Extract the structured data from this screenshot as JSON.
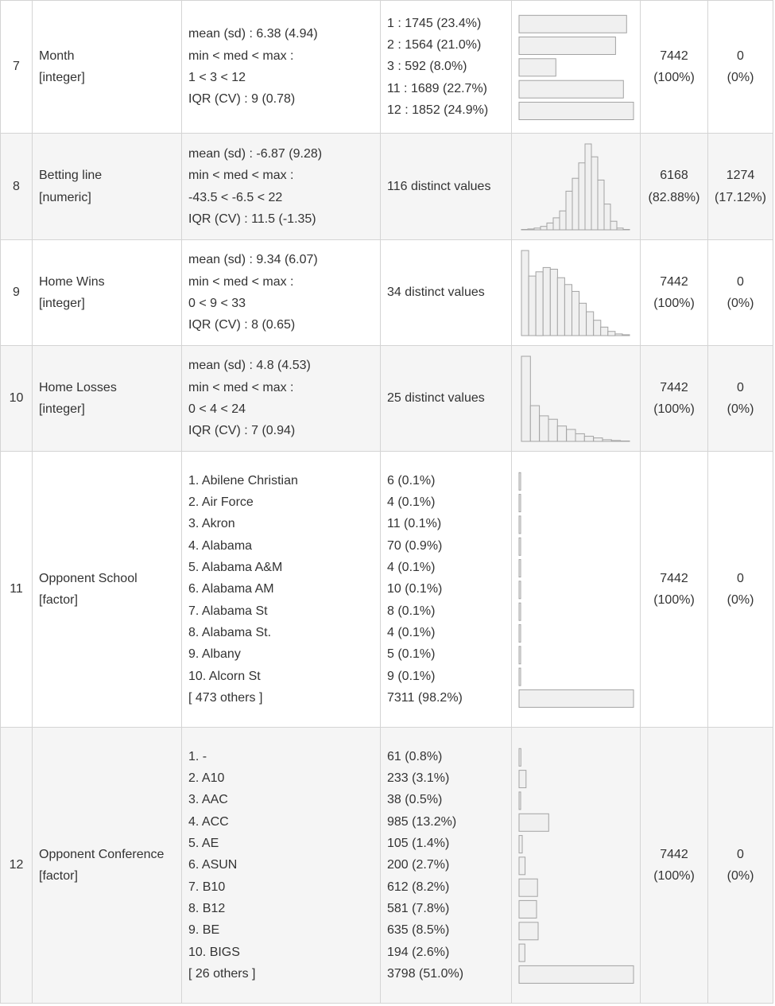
{
  "rows": [
    {
      "no": "7",
      "variable": {
        "name": "Month",
        "type": "[integer]"
      },
      "stats": [
        "mean (sd) : 6.38 (4.94)",
        "min < med < max :",
        "1 < 3 < 12",
        "IQR (CV) : 9 (0.78)"
      ],
      "freqs": [
        "1 : 1745 (23.4%)",
        "2 : 1564 (21.0%)",
        "3 : 592 (8.0%)",
        "11 : 1689 (22.7%)",
        "12 : 1852 (24.9%)"
      ],
      "graph": {
        "type": "bars",
        "values": [
          23.4,
          21.0,
          8.0,
          22.7,
          24.9
        ],
        "max": 24.9
      },
      "valid": [
        "7442",
        "(100%)"
      ],
      "missing": [
        "0",
        "(0%)"
      ]
    },
    {
      "no": "8",
      "variable": {
        "name": "Betting line",
        "type": "[numeric]"
      },
      "stats": [
        "mean (sd) : -6.87 (9.28)",
        "min < med < max :",
        "-43.5 < -6.5 < 22",
        "IQR (CV) : 11.5 (-1.35)"
      ],
      "freqs": [
        "116 distinct values"
      ],
      "graph": {
        "type": "histogram",
        "values": [
          0.5,
          1,
          2,
          4,
          8,
          14,
          22,
          45,
          60,
          78,
          100,
          85,
          58,
          30,
          10,
          2,
          0.5
        ]
      },
      "valid": [
        "6168",
        "(82.88%)"
      ],
      "missing": [
        "1274",
        "(17.12%)"
      ]
    },
    {
      "no": "9",
      "variable": {
        "name": "Home Wins",
        "type": "[integer]"
      },
      "stats": [
        "mean (sd) : 9.34 (6.07)",
        "min < med < max :",
        "0 < 9 < 33",
        "IQR (CV) : 8 (0.65)"
      ],
      "freqs": [
        "34 distinct values"
      ],
      "graph": {
        "type": "histogram",
        "values": [
          100,
          70,
          75,
          80,
          78,
          68,
          60,
          52,
          38,
          28,
          18,
          10,
          5,
          2,
          1
        ]
      },
      "valid": [
        "7442",
        "(100%)"
      ],
      "missing": [
        "0",
        "(0%)"
      ]
    },
    {
      "no": "10",
      "variable": {
        "name": "Home Losses",
        "type": "[integer]"
      },
      "stats": [
        "mean (sd) : 4.8 (4.53)",
        "min < med < max :",
        "0 < 4 < 24",
        "IQR (CV) : 7 (0.94)"
      ],
      "freqs": [
        "25 distinct values"
      ],
      "graph": {
        "type": "histogram",
        "values": [
          100,
          42,
          30,
          26,
          18,
          14,
          9,
          6,
          4,
          2,
          1,
          0.5
        ]
      },
      "valid": [
        "7442",
        "(100%)"
      ],
      "missing": [
        "0",
        "(0%)"
      ]
    },
    {
      "no": "11",
      "variable": {
        "name": "Opponent School",
        "type": "[factor]"
      },
      "stats": [
        "1. Abilene Christian",
        "2. Air Force",
        "3. Akron",
        "4. Alabama",
        "5. Alabama A&M",
        "6. Alabama AM",
        "7. Alabama St",
        "8. Alabama St.",
        "9. Albany",
        "10. Alcorn St",
        "[ 473 others ]"
      ],
      "freqs": [
        "6 (0.1%)",
        "4 (0.1%)",
        "11 (0.1%)",
        "70 (0.9%)",
        "4 (0.1%)",
        "10 (0.1%)",
        "8 (0.1%)",
        "4 (0.1%)",
        "5 (0.1%)",
        "9 (0.1%)",
        "7311 (98.2%)"
      ],
      "graph": {
        "type": "bars",
        "values": [
          0.1,
          0.1,
          0.1,
          0.9,
          0.1,
          0.1,
          0.1,
          0.1,
          0.1,
          0.1,
          98.2
        ],
        "max": 98.2
      },
      "valid": [
        "7442",
        "(100%)"
      ],
      "missing": [
        "0",
        "(0%)"
      ]
    },
    {
      "no": "12",
      "variable": {
        "name": "Opponent Conference",
        "type": "[factor]"
      },
      "stats": [
        "1. -",
        "2. A10",
        "3. AAC",
        "4. ACC",
        "5. AE",
        "6. ASUN",
        "7. B10",
        "8. B12",
        "9. BE",
        "10. BIGS",
        "[ 26 others ]"
      ],
      "freqs": [
        "61 (0.8%)",
        "233 (3.1%)",
        "38 (0.5%)",
        "985 (13.2%)",
        "105 (1.4%)",
        "200 (2.7%)",
        "612 (8.2%)",
        "581 (7.8%)",
        "635 (8.5%)",
        "194 (2.6%)",
        "3798 (51.0%)"
      ],
      "graph": {
        "type": "bars",
        "values": [
          0.8,
          3.1,
          0.5,
          13.2,
          1.4,
          2.7,
          8.2,
          7.8,
          8.5,
          2.6,
          51.0
        ],
        "max": 51.0
      },
      "valid": [
        "7442",
        "(100%)"
      ],
      "missing": [
        "0",
        "(0%)"
      ]
    }
  ]
}
